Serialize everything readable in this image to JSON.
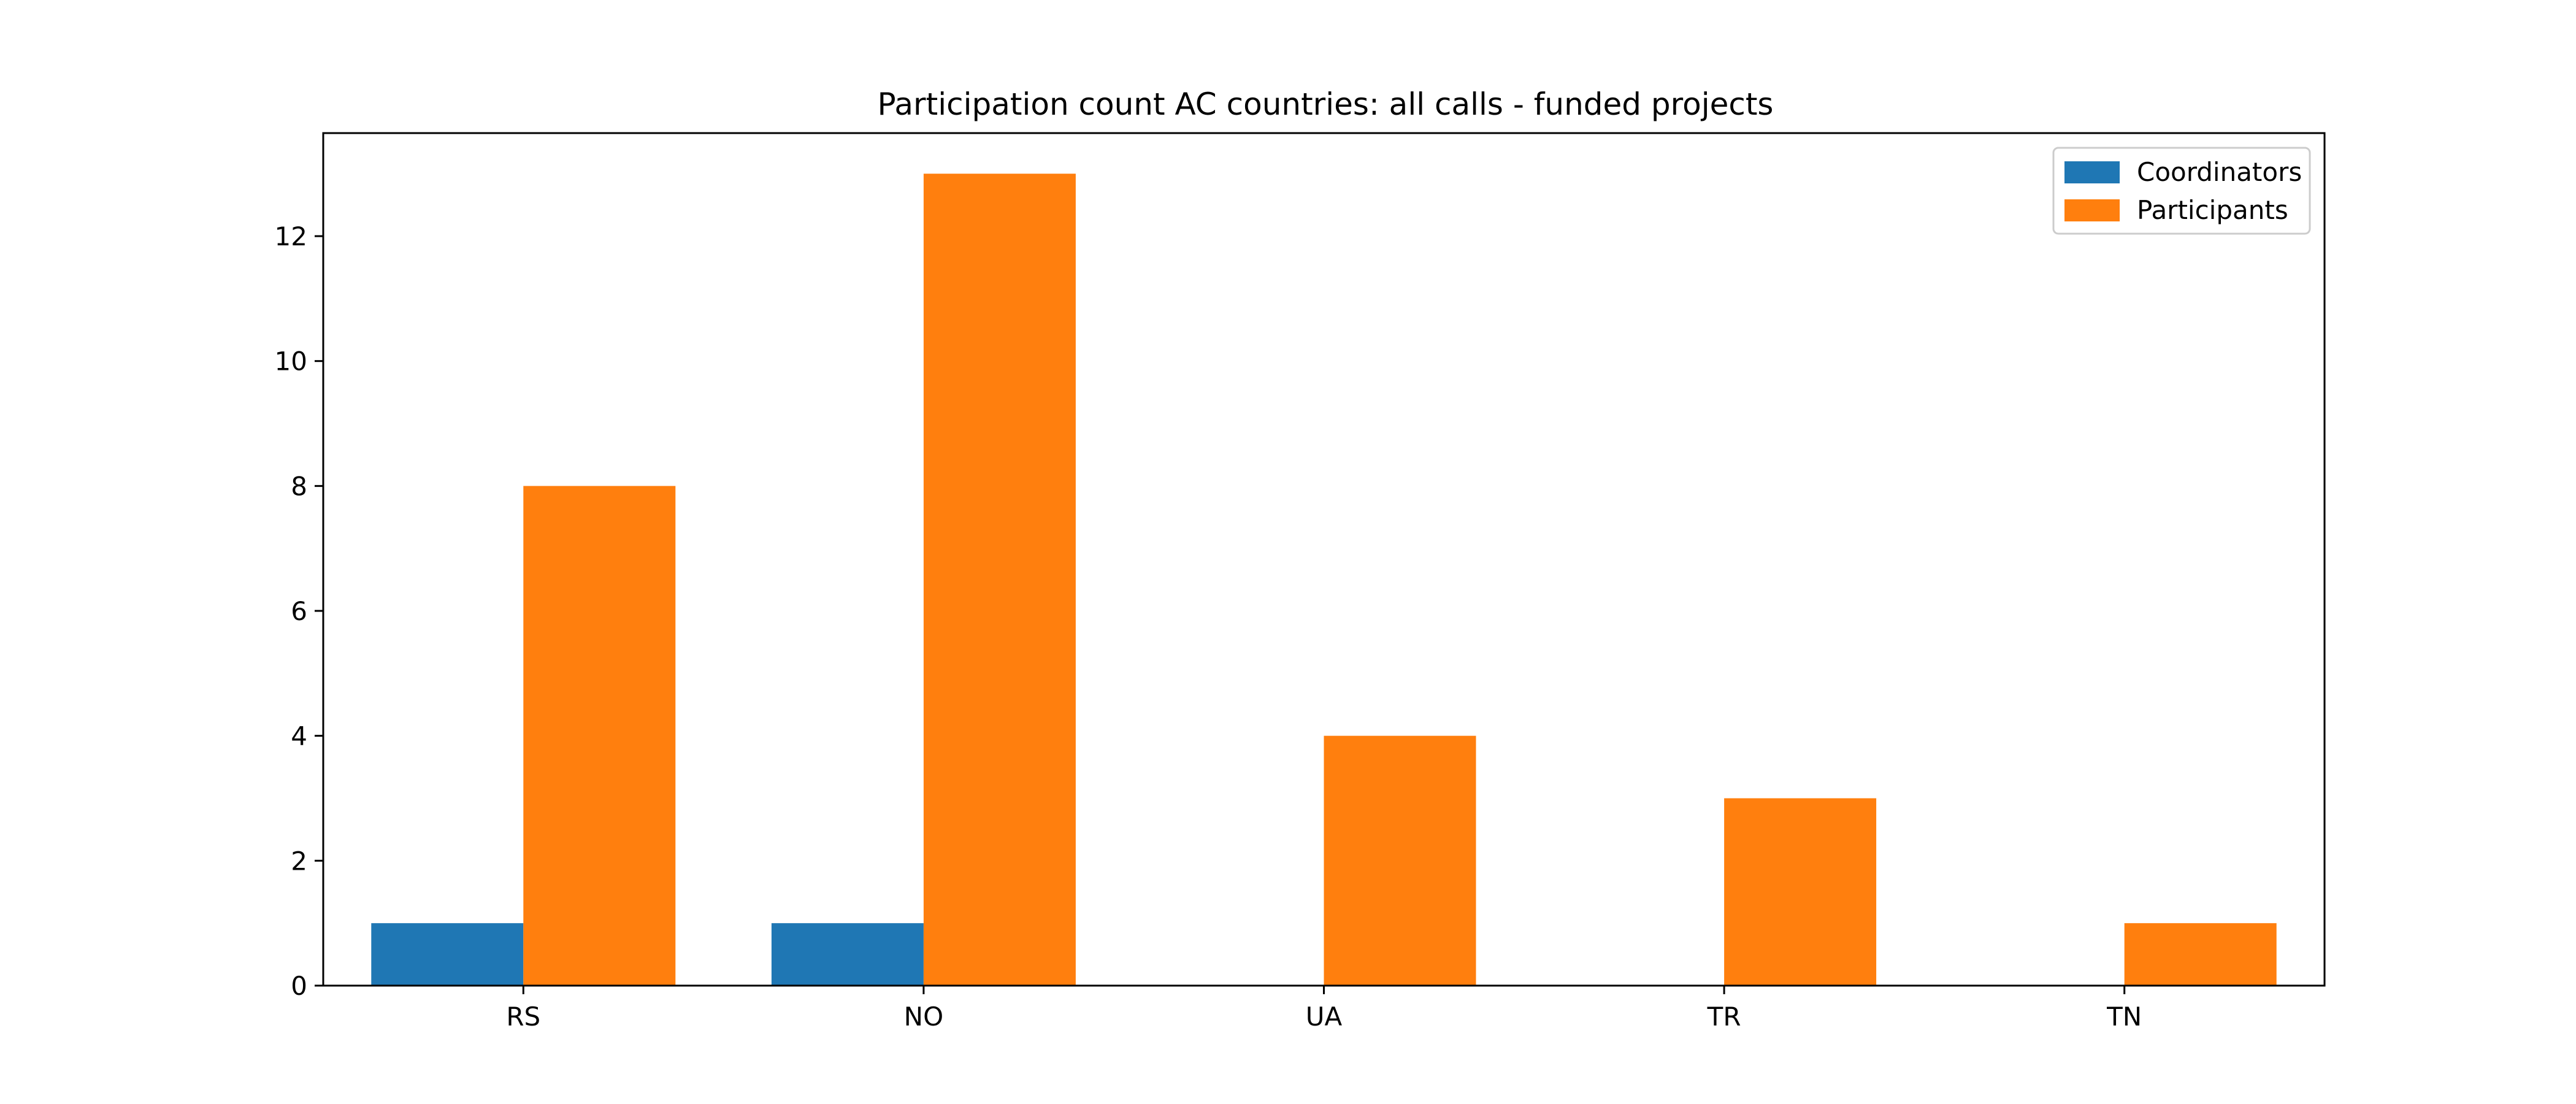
{
  "chart_data": {
    "type": "bar",
    "title": "Participation count AC countries: all calls - funded projects",
    "xlabel": "",
    "ylabel": "",
    "categories": [
      "RS",
      "NO",
      "UA",
      "TR",
      "TN"
    ],
    "series": [
      {
        "name": "Coordinators",
        "color": "#1f77b4",
        "values": [
          1,
          1,
          0,
          0,
          0
        ]
      },
      {
        "name": "Participants",
        "color": "#ff7f0e",
        "values": [
          8,
          13,
          4,
          3,
          1
        ]
      }
    ],
    "ylim": [
      0,
      13.65
    ],
    "yticks": [
      0,
      2,
      4,
      6,
      8,
      10,
      12
    ],
    "grid": false,
    "legend_position": "top-right"
  }
}
